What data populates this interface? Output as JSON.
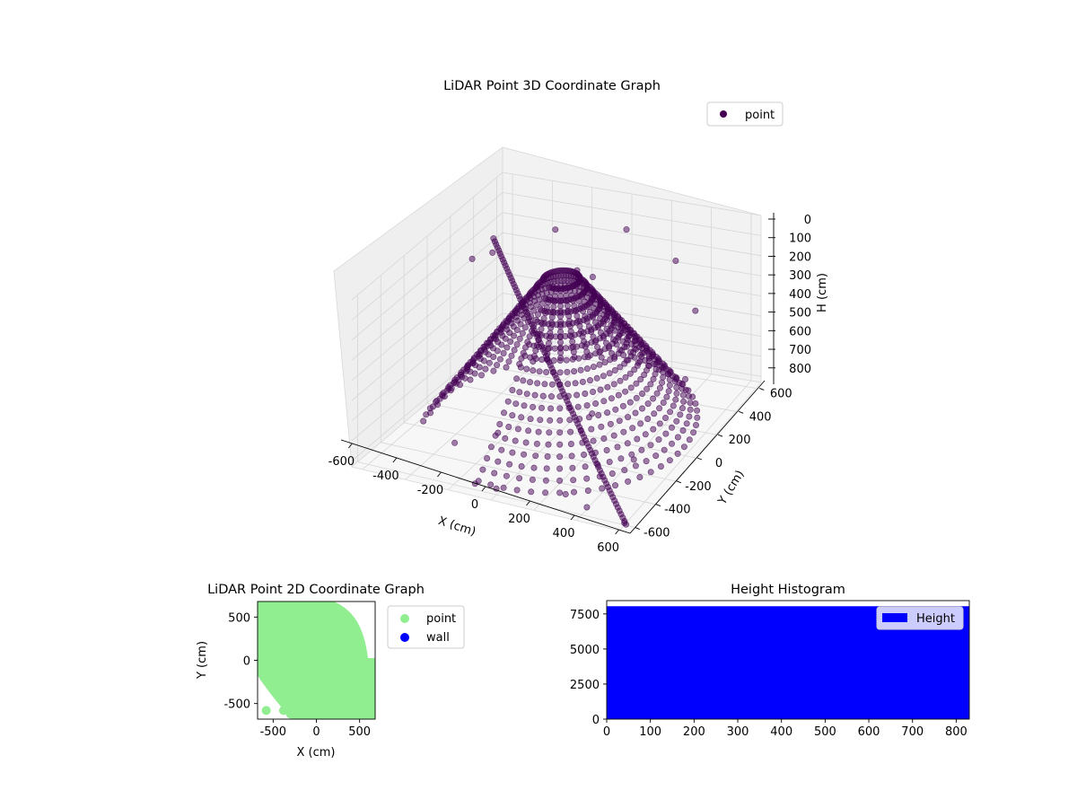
{
  "chart_data": [
    {
      "type": "scatter",
      "projection": "3d",
      "title": "LiDAR Point 3D Coordinate Graph",
      "xlabel": "X (cm)",
      "ylabel": "Y (cm)",
      "zlabel": "H (cm)",
      "xticks": [
        "-600",
        "-400",
        "-200",
        "0",
        "200",
        "400",
        "600"
      ],
      "yticks": [
        "-600",
        "-400",
        "-200",
        "0",
        "200",
        "400",
        "600"
      ],
      "zticks": [
        "0",
        "100",
        "200",
        "300",
        "400",
        "500",
        "600",
        "700",
        "800"
      ],
      "xlim": [
        -650,
        650
      ],
      "ylim": [
        -650,
        650
      ],
      "zlim": [
        0,
        830
      ],
      "z_inverted": true,
      "grid": true,
      "legend": {
        "position": "top-right",
        "entries": [
          {
            "name": "point",
            "color": "#440154"
          }
        ]
      },
      "series": [
        {
          "name": "point",
          "color": "#440154",
          "alpha": 0.5,
          "structure": "dense bands of points sweeping around the origin at about -650 to 650 cm in X and Y, with heights about 0 to 830 cm",
          "sample_points": [
            [
              -600,
              300,
              250
            ],
            [
              -450,
              0,
              600
            ],
            [
              -300,
              -400,
              750
            ],
            [
              0,
              -600,
              800
            ],
            [
              300,
              -550,
              780
            ],
            [
              500,
              -300,
              700
            ],
            [
              600,
              0,
              450
            ],
            [
              500,
              300,
              300
            ],
            [
              300,
              500,
              200
            ],
            [
              0,
              600,
              150
            ],
            [
              -300,
              500,
              150
            ],
            [
              -500,
              300,
              200
            ],
            [
              -200,
              -200,
              780
            ],
            [
              100,
              100,
              100
            ],
            [
              50,
              50,
              50
            ],
            [
              400,
              -550,
              820
            ],
            [
              600,
              -600,
              820
            ],
            [
              -100,
              -600,
              800
            ],
            [
              200,
              -100,
              650
            ]
          ]
        }
      ]
    },
    {
      "type": "scatter",
      "title": "LiDAR Point 2D Coordinate Graph",
      "xlabel": "X (cm)",
      "ylabel": "Y (cm)",
      "xticks": [
        "-500",
        "0",
        "500"
      ],
      "yticks": [
        "-500",
        "0",
        "500"
      ],
      "xlim": [
        -680,
        680
      ],
      "ylim": [
        -680,
        680
      ],
      "legend": {
        "position": "outside-right",
        "entries": [
          {
            "name": "point",
            "color": "#90ee90"
          },
          {
            "name": "wall",
            "color": "#0000ff"
          }
        ]
      },
      "series": [
        {
          "name": "point",
          "color": "#90ee90",
          "coverage_note": "points fill most of the plot area except the top-left and bottom-left corners",
          "sample_points": [
            [
              -580,
              -580
            ],
            [
              -380,
              -580
            ],
            [
              -300,
              -620
            ]
          ]
        },
        {
          "name": "wall",
          "color": "#0000ff",
          "sample_points": []
        }
      ]
    },
    {
      "type": "bar",
      "subtype": "histogram",
      "title": "Height Histogram",
      "xlabel": "",
      "ylabel": "",
      "xticks": [
        "0",
        "100",
        "200",
        "300",
        "400",
        "500",
        "600",
        "700",
        "800"
      ],
      "yticks": [
        "0",
        "2500",
        "5000",
        "7500"
      ],
      "xlim": [
        0,
        830
      ],
      "ylim": [
        0,
        8450
      ],
      "legend": {
        "position": "top-right",
        "entries": [
          {
            "name": "Height",
            "color": "#0000ff"
          }
        ]
      },
      "series": [
        {
          "name": "Height",
          "color": "#0000ff",
          "bin_range": [
            0,
            830
          ],
          "count": 8050
        }
      ]
    }
  ]
}
